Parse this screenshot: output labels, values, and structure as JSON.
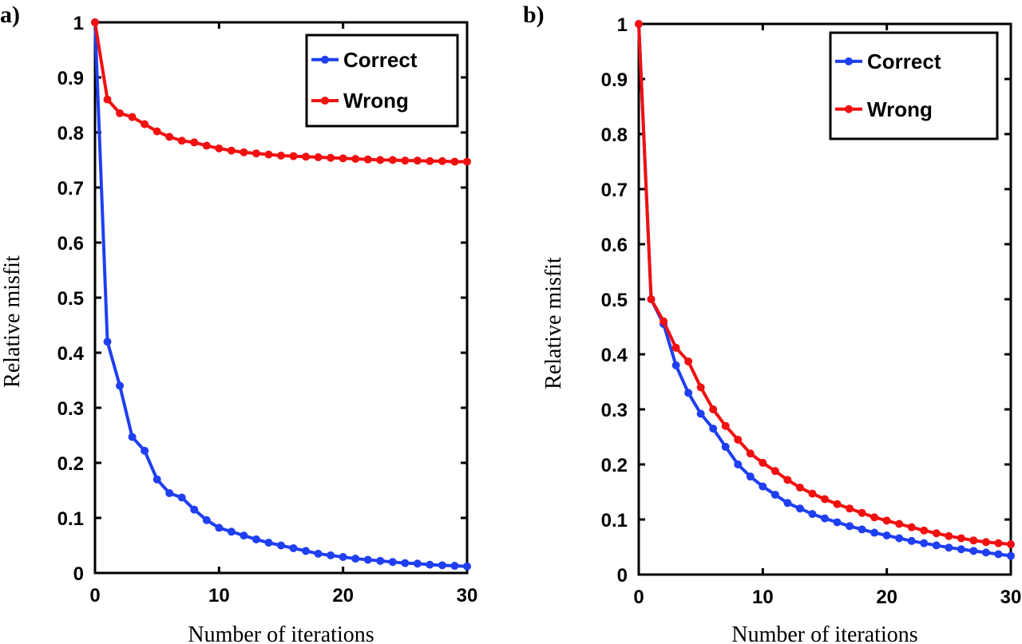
{
  "chart_data": [
    {
      "panel_label": "a)",
      "type": "line",
      "title": "",
      "xlabel": "Number of iterations",
      "ylabel": "Relative misfit",
      "xlim": [
        0,
        30
      ],
      "ylim": [
        0,
        1
      ],
      "xticks": [
        0,
        10,
        20,
        30
      ],
      "xtick_labels": [
        "0",
        "10",
        "20",
        "30"
      ],
      "yticks": [
        0,
        0.1,
        0.2,
        0.3,
        0.4,
        0.5,
        0.6,
        0.7,
        0.8,
        0.9,
        1
      ],
      "ytick_labels": [
        "0",
        "0.1",
        "0.2",
        "0.3",
        "0.4",
        "0.5",
        "0.6",
        "0.7",
        "0.8",
        "0.9",
        "1"
      ],
      "grid": false,
      "legend_position": "top-right",
      "x": [
        0,
        1,
        2,
        3,
        4,
        5,
        6,
        7,
        8,
        9,
        10,
        11,
        12,
        13,
        14,
        15,
        16,
        17,
        18,
        19,
        20,
        21,
        22,
        23,
        24,
        25,
        26,
        27,
        28,
        29,
        30
      ],
      "series": [
        {
          "name": "Correct",
          "color": "#1f3ff0",
          "values": [
            1.0,
            0.42,
            0.34,
            0.247,
            0.222,
            0.17,
            0.145,
            0.137,
            0.115,
            0.096,
            0.082,
            0.075,
            0.068,
            0.061,
            0.055,
            0.05,
            0.045,
            0.04,
            0.035,
            0.032,
            0.029,
            0.026,
            0.024,
            0.022,
            0.02,
            0.018,
            0.017,
            0.015,
            0.014,
            0.013,
            0.012
          ]
        },
        {
          "name": "Wrong",
          "color": "#f01010",
          "values": [
            1.0,
            0.86,
            0.835,
            0.828,
            0.815,
            0.802,
            0.792,
            0.785,
            0.782,
            0.776,
            0.771,
            0.767,
            0.764,
            0.762,
            0.76,
            0.758,
            0.757,
            0.756,
            0.755,
            0.754,
            0.753,
            0.752,
            0.751,
            0.75,
            0.75,
            0.749,
            0.749,
            0.748,
            0.748,
            0.747,
            0.747
          ]
        }
      ]
    },
    {
      "panel_label": "b)",
      "type": "line",
      "title": "",
      "xlabel": "Number of iterations",
      "ylabel": "Relative misfit",
      "xlim": [
        0,
        30
      ],
      "ylim": [
        0,
        1
      ],
      "xticks": [
        0,
        10,
        20,
        30
      ],
      "xtick_labels": [
        "0",
        "10",
        "20",
        "30"
      ],
      "yticks": [
        0,
        0.1,
        0.2,
        0.3,
        0.4,
        0.5,
        0.6,
        0.7,
        0.8,
        0.9,
        1
      ],
      "ytick_labels": [
        "0",
        "0.1",
        "0.2",
        "0.3",
        "0.4",
        "0.5",
        "0.6",
        "0.7",
        "0.8",
        "0.9",
        "1"
      ],
      "grid": false,
      "legend_position": "top-right",
      "x": [
        0,
        1,
        2,
        3,
        4,
        5,
        6,
        7,
        8,
        9,
        10,
        11,
        12,
        13,
        14,
        15,
        16,
        17,
        18,
        19,
        20,
        21,
        22,
        23,
        24,
        25,
        26,
        27,
        28,
        29,
        30
      ],
      "series": [
        {
          "name": "Correct",
          "color": "#1f3ff0",
          "values": [
            1.0,
            0.5,
            0.455,
            0.38,
            0.33,
            0.292,
            0.265,
            0.232,
            0.2,
            0.178,
            0.16,
            0.145,
            0.13,
            0.12,
            0.11,
            0.102,
            0.095,
            0.088,
            0.082,
            0.076,
            0.071,
            0.066,
            0.061,
            0.057,
            0.053,
            0.049,
            0.046,
            0.043,
            0.04,
            0.037,
            0.034
          ]
        },
        {
          "name": "Wrong",
          "color": "#f01010",
          "values": [
            1.0,
            0.5,
            0.46,
            0.412,
            0.387,
            0.34,
            0.3,
            0.27,
            0.245,
            0.22,
            0.203,
            0.188,
            0.172,
            0.158,
            0.147,
            0.137,
            0.128,
            0.12,
            0.112,
            0.104,
            0.098,
            0.092,
            0.086,
            0.08,
            0.075,
            0.07,
            0.066,
            0.062,
            0.059,
            0.057,
            0.055
          ]
        }
      ]
    }
  ]
}
